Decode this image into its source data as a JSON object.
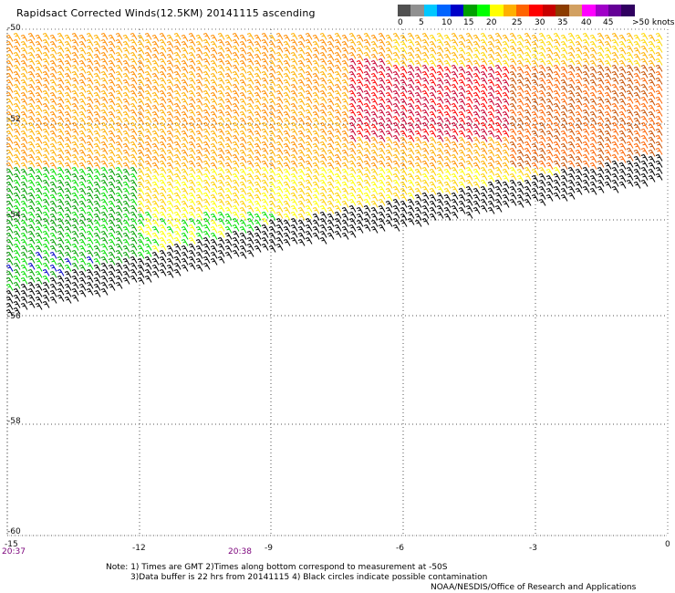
{
  "title": "Rapidsact Corrected Winds(12.5KM) 20141115 ascending",
  "scale": {
    "labels": [
      "0",
      "5",
      "10",
      "15",
      "20",
      "25",
      "30",
      "35",
      "40",
      "45",
      ">50 knots"
    ],
    "colors": [
      "#505050",
      "#909090",
      "#00c8ff",
      "#0064ff",
      "#0000c8",
      "#00a000",
      "#00ff00",
      "#ffff00",
      "#ffb000",
      "#ff6400",
      "#ff0000",
      "#c80000",
      "#8c3c00",
      "#d2a060",
      "#ff00ff",
      "#a000c8",
      "#640096",
      "#300060"
    ]
  },
  "y_axis": {
    "ticks": [
      "-50",
      "-52",
      "-54",
      "-56",
      "-58",
      "-60"
    ]
  },
  "x_axis": {
    "ticks": [
      "-15",
      "-12",
      "-9",
      "-6",
      "-3",
      "0"
    ]
  },
  "times": [
    "20:37",
    "20:38"
  ],
  "notes": {
    "line1": "Note: 1) Times are GMT 2)Times along bottom correspond to measurement at -50S",
    "line2": "3)Data buffer is 22 hrs from 20141115 4) Black circles indicate possible contamination",
    "credit": "NOAA/NESDIS/Office of Research and Applications"
  }
}
